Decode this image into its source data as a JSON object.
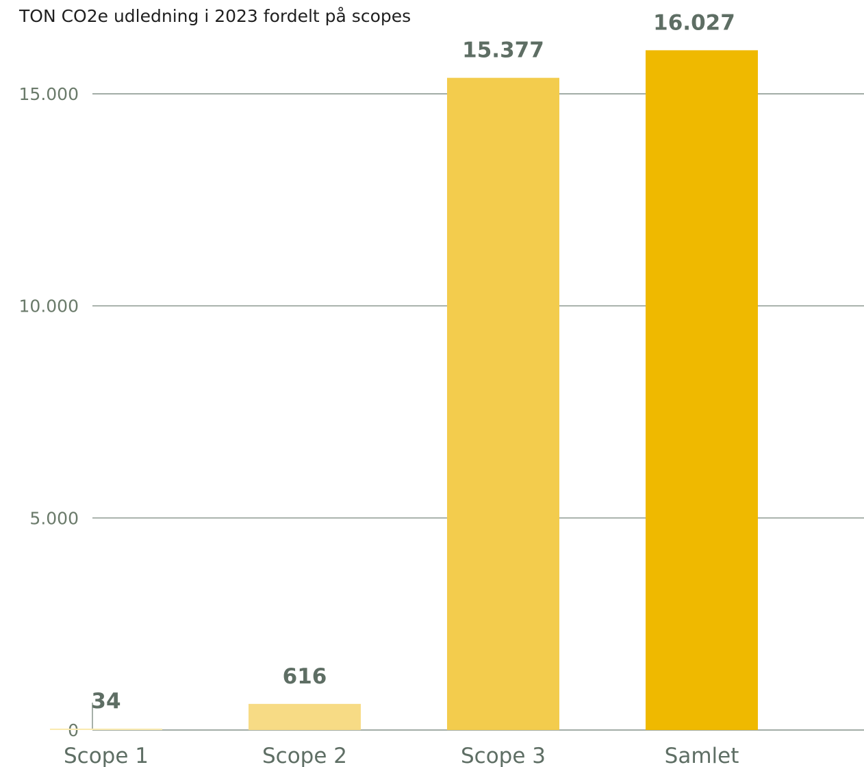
{
  "chart_data": {
    "type": "bar",
    "title": "TON CO2e udledning i 2023 fordelt på scopes",
    "categories": [
      "Scope 1",
      "Scope 2",
      "Scope 3",
      "Samlet"
    ],
    "values": [
      34,
      616,
      15377,
      16027
    ],
    "value_labels": [
      "34",
      "616",
      "15.377",
      "16.027"
    ],
    "bar_colors": [
      "#faeab0",
      "#f7db85",
      "#f3cc4d",
      "#efb900"
    ],
    "ylim": [
      0,
      16027
    ],
    "yticks": [
      0,
      5000,
      10000,
      15000
    ],
    "ytick_labels": [
      "0",
      "5.000",
      "10.000",
      "15.000"
    ],
    "grid": true,
    "legend": "none",
    "colors": {
      "gridline": "#6b7b70",
      "axis_text": "#6a7a6a",
      "title_text": "#1f1f1f",
      "label_text": "#5e6e64"
    }
  }
}
